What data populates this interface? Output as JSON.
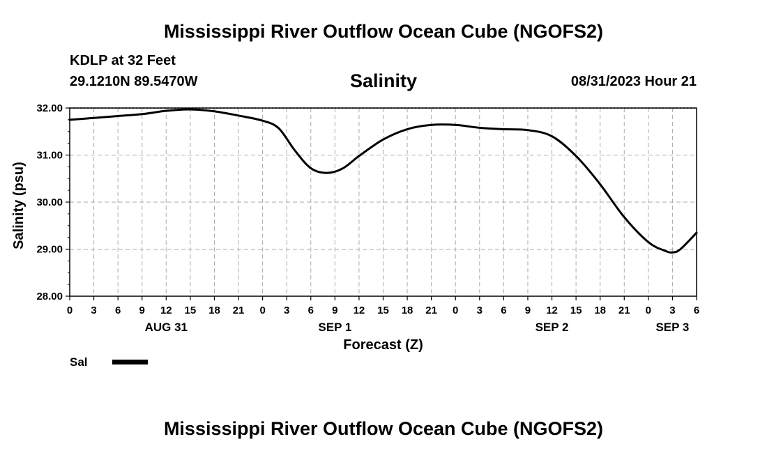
{
  "header": {
    "title_top": "Mississippi River Outflow Ocean Cube (NGOFS2)",
    "station": "KDLP at 32 Feet",
    "coords": "29.1210N  89.5470W",
    "subtitle": "Salinity",
    "datetime": "08/31/2023 Hour 21",
    "title_bottom": "Mississippi River Outflow Ocean Cube (NGOFS2)"
  },
  "legend": {
    "label": "Sal"
  },
  "chart_data": {
    "type": "line",
    "title": "Salinity",
    "xlabel": "Forecast (Z)",
    "ylabel": "Salinity (psu)",
    "ylim": [
      28.0,
      32.0
    ],
    "xlim": [
      0,
      78
    ],
    "yticks": [
      "28.00",
      "29.00",
      "30.00",
      "31.00",
      "32.00"
    ],
    "xtick_labels": [
      "0",
      "3",
      "6",
      "9",
      "12",
      "15",
      "18",
      "21",
      "0",
      "3",
      "6",
      "9",
      "12",
      "15",
      "18",
      "21",
      "0",
      "3",
      "6",
      "9",
      "12",
      "15",
      "18",
      "21",
      "0",
      "3",
      "6"
    ],
    "day_labels": [
      {
        "label": "AUG 31",
        "hour": 12
      },
      {
        "label": "SEP 1",
        "hour": 33
      },
      {
        "label": "SEP 2",
        "hour": 60
      },
      {
        "label": "SEP 3",
        "hour": 75
      }
    ],
    "grid": true,
    "series": [
      {
        "name": "Sal",
        "color": "#000000",
        "x": [
          0,
          3,
          6,
          9,
          12,
          15,
          18,
          21,
          24,
          26,
          28,
          30,
          32,
          34,
          36,
          39,
          42,
          45,
          48,
          51,
          54,
          57,
          60,
          63,
          66,
          69,
          72,
          74,
          75,
          76,
          78
        ],
        "y": [
          31.75,
          31.79,
          31.83,
          31.87,
          31.94,
          31.97,
          31.93,
          31.84,
          31.73,
          31.57,
          31.1,
          30.72,
          30.62,
          30.72,
          30.98,
          31.33,
          31.55,
          31.64,
          31.64,
          31.58,
          31.55,
          31.53,
          31.4,
          30.98,
          30.38,
          29.68,
          29.15,
          28.97,
          28.93,
          29.0,
          29.35
        ]
      }
    ]
  }
}
